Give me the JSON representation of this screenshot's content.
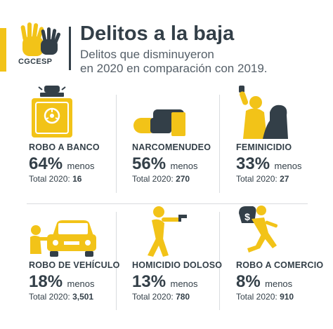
{
  "header": {
    "logo_text": "CGCESP",
    "title": "Delitos a la baja",
    "subtitle_line1": "Delitos que disminuyeron",
    "subtitle_line2": "en 2020 en comparación con 2019."
  },
  "colors": {
    "accent": "#f2c318",
    "dark": "#333f48"
  },
  "cards": [
    {
      "label": "ROBO A BANCO",
      "percent": "64%",
      "word": "menos",
      "total_label": "Total 2020:",
      "total_value": "16",
      "icon": "bank-safe-icon"
    },
    {
      "label": "NARCOMENUDEO",
      "percent": "56%",
      "word": "menos",
      "total_label": "Total 2020:",
      "total_value": "270",
      "icon": "pill-hand-icon"
    },
    {
      "label": "FEMINICIDIO",
      "percent": "33%",
      "word": "menos",
      "total_label": "Total 2020:",
      "total_value": "27",
      "icon": "assault-icon"
    },
    {
      "label": "ROBO DE VEHÍCULO",
      "percent": "18%",
      "word": "menos",
      "total_label": "Total 2020:",
      "total_value": "3,501",
      "icon": "car-theft-icon"
    },
    {
      "label": "HOMICIDIO DOLOSO",
      "percent": "13%",
      "word": "menos",
      "total_label": "Total 2020:",
      "total_value": "780",
      "icon": "gunman-icon"
    },
    {
      "label": "ROBO A COMERCIO",
      "percent": "8%",
      "word": "menos",
      "total_label": "Total 2020:",
      "total_value": "910",
      "icon": "money-bag-runner-icon"
    }
  ]
}
